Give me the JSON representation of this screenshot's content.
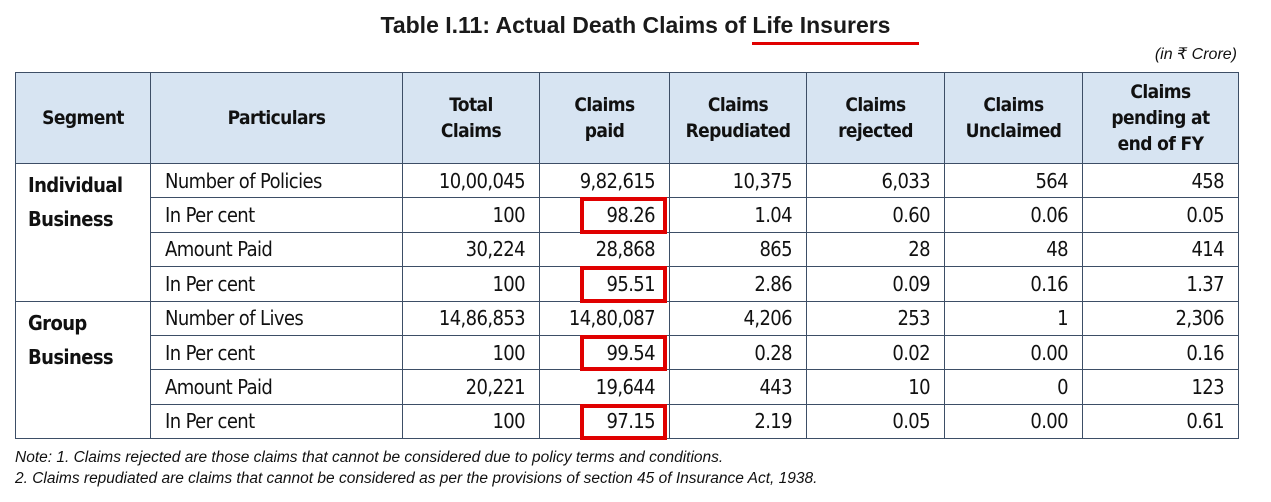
{
  "title": "Table I.11: Actual Death Claims of Life Insurers",
  "unit": "(in ₹ Crore)",
  "headers": [
    "Segment",
    "Particulars",
    "Total Claims",
    "Claims paid",
    "Claims Repudiated",
    "Claims rejected",
    "Claims Unclaimed",
    "Claims pending at end of FY"
  ],
  "header_lines": {
    "h2": [
      "Total",
      "Claims"
    ],
    "h3": [
      "Claims",
      "paid"
    ],
    "h4": [
      "Claims",
      "Repudiated"
    ],
    "h5": [
      "Claims",
      "rejected"
    ],
    "h6": [
      "Claims",
      "Unclaimed"
    ],
    "h7": [
      "Claims",
      "pending at",
      "end of FY"
    ]
  },
  "segments": [
    {
      "name_lines": [
        "Individual",
        "Business"
      ],
      "rows": [
        {
          "particulars": "Number of Policies",
          "values": [
            "10,00,045",
            "9,82,615",
            "10,375",
            "6,033",
            "564",
            "458"
          ]
        },
        {
          "particulars": "In Per cent",
          "values": [
            "100",
            "98.26",
            "1.04",
            "0.60",
            "0.06",
            "0.05"
          ]
        },
        {
          "particulars": "Amount Paid",
          "values": [
            "30,224",
            "28,868",
            "865",
            "28",
            "48",
            "414"
          ]
        },
        {
          "particulars": "In Per cent",
          "values": [
            "100",
            "95.51",
            "2.86",
            "0.09",
            "0.16",
            "1.37"
          ]
        }
      ]
    },
    {
      "name_lines": [
        "Group",
        "Business"
      ],
      "rows": [
        {
          "particulars": "Number of Lives",
          "values": [
            "14,86,853",
            "14,80,087",
            "4,206",
            "253",
            "1",
            "2,306"
          ]
        },
        {
          "particulars": "In Per cent",
          "values": [
            "100",
            "99.54",
            "0.28",
            "0.02",
            "0.00",
            "0.16"
          ]
        },
        {
          "particulars": "Amount Paid",
          "values": [
            "20,221",
            "19,644",
            "443",
            "10",
            "0",
            "123"
          ]
        },
        {
          "particulars": "In Per cent",
          "values": [
            "100",
            "97.15",
            "2.19",
            "0.05",
            "0.00",
            "0.61"
          ]
        }
      ]
    }
  ],
  "notes": [
    "Note: 1. Claims rejected are those claims that cannot be considered due to policy terms and conditions.",
    "2. Claims repudiated are claims that cannot be considered as per the provisions of section 45 of Insurance Act, 1938."
  ],
  "colors": {
    "header_bg": "#d7e4f2",
    "highlight": "#e00000",
    "border": "#3d4e66"
  }
}
